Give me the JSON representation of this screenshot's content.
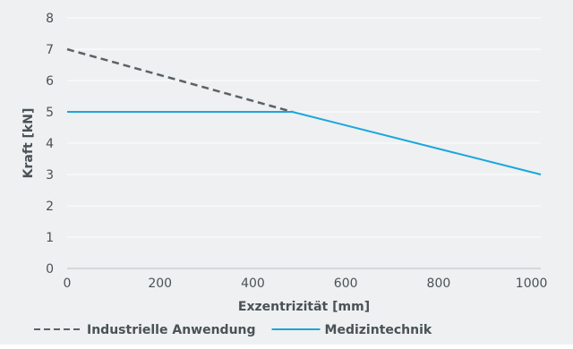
{
  "chart_data": {
    "type": "line",
    "xlabel": "Exzentrizität [mm]",
    "ylabel": "Kraft [kN]",
    "xlim": [
      0,
      1020
    ],
    "ylim": [
      0,
      8
    ],
    "x_ticks": [
      0,
      200,
      400,
      600,
      800,
      1000
    ],
    "y_ticks": [
      0,
      1,
      2,
      3,
      4,
      5,
      6,
      7,
      8
    ],
    "grid": "horizontal",
    "legend_position": "bottom",
    "series": [
      {
        "name": "Industrielle Anwendung",
        "style": "dashed",
        "color": "#5b6266",
        "points": [
          [
            0,
            7.0
          ],
          [
            485,
            5.0
          ]
        ]
      },
      {
        "name": "Medizintechnik",
        "style": "solid",
        "color": "#1aa6dd",
        "points": [
          [
            0,
            5.0
          ],
          [
            485,
            5.0
          ],
          [
            1020,
            3.0
          ]
        ]
      }
    ]
  }
}
